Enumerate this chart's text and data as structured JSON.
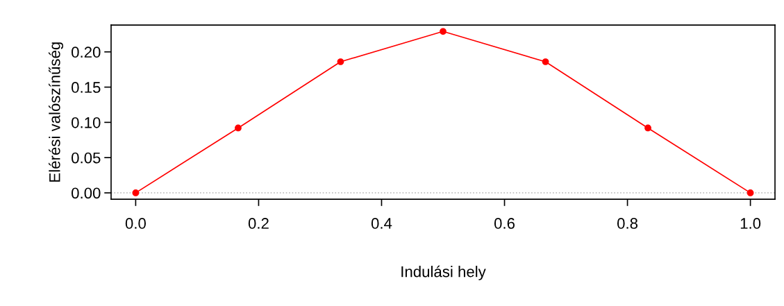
{
  "chart_data": {
    "type": "line",
    "xlabel": "Indulási hely",
    "ylabel": "Elérési valószínűség",
    "x": [
      0,
      0.1667,
      0.3333,
      0.5,
      0.6667,
      0.8333,
      1.0
    ],
    "series": [
      {
        "color": "#ff0000",
        "values": [
          0,
          0.092,
          0.186,
          0.229,
          0.186,
          0.092,
          0
        ]
      }
    ],
    "marker": "circle",
    "line_style": "solid",
    "grid": false,
    "legend": false,
    "xlim": [
      -0.04,
      1.04
    ],
    "ylim": [
      -0.009,
      0.238
    ],
    "xticks": [
      {
        "value": 0,
        "label": "0.0"
      },
      {
        "value": 0.2,
        "label": "0.2"
      },
      {
        "value": 0.4,
        "label": "0.4"
      },
      {
        "value": 0.6,
        "label": "0.6"
      },
      {
        "value": 0.8,
        "label": "0.8"
      },
      {
        "value": 1,
        "label": "1.0"
      }
    ],
    "yticks": [
      {
        "value": 0,
        "label": "0.00"
      },
      {
        "value": 0.05,
        "label": "0.05"
      },
      {
        "value": 0.1,
        "label": "0.10"
      },
      {
        "value": 0.15,
        "label": "0.15"
      },
      {
        "value": 0.2,
        "label": "0.20"
      }
    ],
    "ref_lines": [
      {
        "axis": "y",
        "value": 0,
        "color": "#bebebe",
        "line_style": "dotted"
      }
    ]
  }
}
